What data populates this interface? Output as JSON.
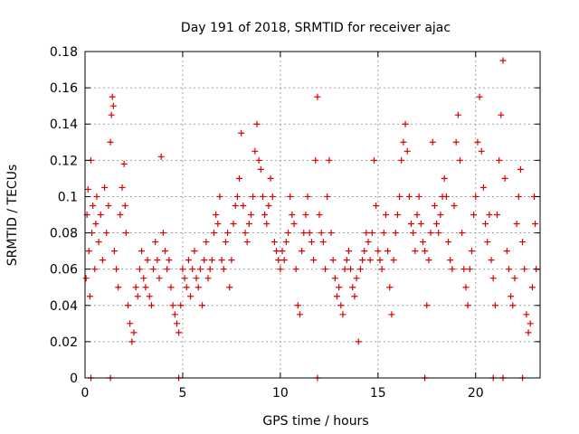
{
  "chart_data": {
    "type": "scatter",
    "title": "Day 191 of 2018, SRMTID for receiver ajac",
    "xlabel": "GPS time / hours",
    "ylabel": "SRMTID / TECUs",
    "xlim": [
      0,
      23.3
    ],
    "ylim": [
      0,
      0.18
    ],
    "xticks": [
      0,
      5,
      10,
      15,
      20
    ],
    "yticks": [
      0,
      0.02,
      0.04,
      0.06,
      0.08,
      0.1,
      0.12,
      0.14,
      0.16,
      0.18
    ],
    "grid": true,
    "marker": "+",
    "marker_color": "#dd0000",
    "series": [
      {
        "name": "",
        "points": [
          [
            0.05,
            0.055
          ],
          [
            0.1,
            0.09
          ],
          [
            0.15,
            0.104
          ],
          [
            0.2,
            0.07
          ],
          [
            0.25,
            0.045
          ],
          [
            0.3,
            0.12
          ],
          [
            0.35,
            0.08
          ],
          [
            0.4,
            0.095
          ],
          [
            0.5,
            0.06
          ],
          [
            0.55,
            0.085
          ],
          [
            0.6,
            0.1
          ],
          [
            0.7,
            0.075
          ],
          [
            0.8,
            0.09
          ],
          [
            0.9,
            0.065
          ],
          [
            1.0,
            0.105
          ],
          [
            1.1,
            0.08
          ],
          [
            1.2,
            0.095
          ],
          [
            1.3,
            0.13
          ],
          [
            1.35,
            0.145
          ],
          [
            1.4,
            0.155
          ],
          [
            1.45,
            0.15
          ],
          [
            1.5,
            0.07
          ],
          [
            1.6,
            0.06
          ],
          [
            1.7,
            0.05
          ],
          [
            1.8,
            0.09
          ],
          [
            1.9,
            0.105
          ],
          [
            2.0,
            0.118
          ],
          [
            2.05,
            0.095
          ],
          [
            2.1,
            0.08
          ],
          [
            2.2,
            0.04
          ],
          [
            2.3,
            0.03
          ],
          [
            2.4,
            0.02
          ],
          [
            2.5,
            0.025
          ],
          [
            2.6,
            0.05
          ],
          [
            2.7,
            0.045
          ],
          [
            2.8,
            0.06
          ],
          [
            2.9,
            0.07
          ],
          [
            3.0,
            0.055
          ],
          [
            3.1,
            0.05
          ],
          [
            3.2,
            0.065
          ],
          [
            3.3,
            0.045
          ],
          [
            3.4,
            0.04
          ],
          [
            3.5,
            0.06
          ],
          [
            3.6,
            0.075
          ],
          [
            3.7,
            0.065
          ],
          [
            3.8,
            0.055
          ],
          [
            3.9,
            0.122
          ],
          [
            4.0,
            0.08
          ],
          [
            4.1,
            0.07
          ],
          [
            4.2,
            0.06
          ],
          [
            4.3,
            0.065
          ],
          [
            4.4,
            0.05
          ],
          [
            4.5,
            0.04
          ],
          [
            4.6,
            0.035
          ],
          [
            4.7,
            0.03
          ],
          [
            4.8,
            0.025
          ],
          [
            4.9,
            0.04
          ],
          [
            5.0,
            0.06
          ],
          [
            5.1,
            0.055
          ],
          [
            5.2,
            0.05
          ],
          [
            5.3,
            0.065
          ],
          [
            5.4,
            0.045
          ],
          [
            5.5,
            0.06
          ],
          [
            5.6,
            0.07
          ],
          [
            5.7,
            0.055
          ],
          [
            5.8,
            0.05
          ],
          [
            5.9,
            0.06
          ],
          [
            6.0,
            0.04
          ],
          [
            6.1,
            0.065
          ],
          [
            6.2,
            0.075
          ],
          [
            6.3,
            0.055
          ],
          [
            6.4,
            0.06
          ],
          [
            6.5,
            0.065
          ],
          [
            6.6,
            0.08
          ],
          [
            6.7,
            0.09
          ],
          [
            6.8,
            0.085
          ],
          [
            6.9,
            0.1
          ],
          [
            7.0,
            0.065
          ],
          [
            7.1,
            0.06
          ],
          [
            7.2,
            0.075
          ],
          [
            7.3,
            0.08
          ],
          [
            7.4,
            0.05
          ],
          [
            7.5,
            0.065
          ],
          [
            7.6,
            0.085
          ],
          [
            7.7,
            0.095
          ],
          [
            7.8,
            0.1
          ],
          [
            7.9,
            0.11
          ],
          [
            8.0,
            0.135
          ],
          [
            8.1,
            0.095
          ],
          [
            8.2,
            0.08
          ],
          [
            8.3,
            0.075
          ],
          [
            8.4,
            0.085
          ],
          [
            8.5,
            0.09
          ],
          [
            8.6,
            0.1
          ],
          [
            8.7,
            0.125
          ],
          [
            8.8,
            0.14
          ],
          [
            8.9,
            0.12
          ],
          [
            9.0,
            0.115
          ],
          [
            9.1,
            0.1
          ],
          [
            9.2,
            0.09
          ],
          [
            9.3,
            0.085
          ],
          [
            9.4,
            0.095
          ],
          [
            9.5,
            0.11
          ],
          [
            9.6,
            0.1
          ],
          [
            9.7,
            0.075
          ],
          [
            9.8,
            0.07
          ],
          [
            9.9,
            0.065
          ],
          [
            10.0,
            0.06
          ],
          [
            10.1,
            0.07
          ],
          [
            10.2,
            0.065
          ],
          [
            10.3,
            0.075
          ],
          [
            10.4,
            0.08
          ],
          [
            10.5,
            0.1
          ],
          [
            10.6,
            0.09
          ],
          [
            10.7,
            0.085
          ],
          [
            10.8,
            0.06
          ],
          [
            10.9,
            0.04
          ],
          [
            11.0,
            0.035
          ],
          [
            11.1,
            0.07
          ],
          [
            11.2,
            0.08
          ],
          [
            11.3,
            0.09
          ],
          [
            11.4,
            0.1
          ],
          [
            11.5,
            0.08
          ],
          [
            11.6,
            0.075
          ],
          [
            11.7,
            0.065
          ],
          [
            11.8,
            0.12
          ],
          [
            11.9,
            0.155
          ],
          [
            12.0,
            0.09
          ],
          [
            12.1,
            0.08
          ],
          [
            12.2,
            0.075
          ],
          [
            12.3,
            0.06
          ],
          [
            12.4,
            0.1
          ],
          [
            12.5,
            0.12
          ],
          [
            12.6,
            0.08
          ],
          [
            12.7,
            0.065
          ],
          [
            12.8,
            0.055
          ],
          [
            12.9,
            0.045
          ],
          [
            13.0,
            0.05
          ],
          [
            13.1,
            0.04
          ],
          [
            13.2,
            0.035
          ],
          [
            13.3,
            0.06
          ],
          [
            13.4,
            0.065
          ],
          [
            13.5,
            0.07
          ],
          [
            13.6,
            0.06
          ],
          [
            13.7,
            0.05
          ],
          [
            13.8,
            0.045
          ],
          [
            13.9,
            0.055
          ],
          [
            14.0,
            0.02
          ],
          [
            14.1,
            0.06
          ],
          [
            14.2,
            0.065
          ],
          [
            14.3,
            0.07
          ],
          [
            14.4,
            0.08
          ],
          [
            14.5,
            0.075
          ],
          [
            14.6,
            0.065
          ],
          [
            14.7,
            0.08
          ],
          [
            14.8,
            0.12
          ],
          [
            14.9,
            0.095
          ],
          [
            15.0,
            0.07
          ],
          [
            15.1,
            0.065
          ],
          [
            15.2,
            0.06
          ],
          [
            15.3,
            0.08
          ],
          [
            15.4,
            0.09
          ],
          [
            15.5,
            0.07
          ],
          [
            15.6,
            0.05
          ],
          [
            15.7,
            0.035
          ],
          [
            15.8,
            0.065
          ],
          [
            15.9,
            0.08
          ],
          [
            16.0,
            0.09
          ],
          [
            16.1,
            0.1
          ],
          [
            16.2,
            0.12
          ],
          [
            16.3,
            0.13
          ],
          [
            16.4,
            0.14
          ],
          [
            16.5,
            0.125
          ],
          [
            16.6,
            0.1
          ],
          [
            16.7,
            0.085
          ],
          [
            16.8,
            0.08
          ],
          [
            16.9,
            0.07
          ],
          [
            17.0,
            0.09
          ],
          [
            17.1,
            0.1
          ],
          [
            17.2,
            0.085
          ],
          [
            17.3,
            0.075
          ],
          [
            17.4,
            0.07
          ],
          [
            17.5,
            0.04
          ],
          [
            17.6,
            0.065
          ],
          [
            17.7,
            0.08
          ],
          [
            17.8,
            0.13
          ],
          [
            17.9,
            0.095
          ],
          [
            18.0,
            0.085
          ],
          [
            18.1,
            0.08
          ],
          [
            18.2,
            0.09
          ],
          [
            18.3,
            0.1
          ],
          [
            18.4,
            0.11
          ],
          [
            18.5,
            0.1
          ],
          [
            18.6,
            0.075
          ],
          [
            18.7,
            0.065
          ],
          [
            18.8,
            0.06
          ],
          [
            18.9,
            0.095
          ],
          [
            19.0,
            0.13
          ],
          [
            19.1,
            0.145
          ],
          [
            19.2,
            0.12
          ],
          [
            19.3,
            0.08
          ],
          [
            19.4,
            0.06
          ],
          [
            19.5,
            0.05
          ],
          [
            19.6,
            0.04
          ],
          [
            19.7,
            0.06
          ],
          [
            19.8,
            0.07
          ],
          [
            19.9,
            0.09
          ],
          [
            20.0,
            0.1
          ],
          [
            20.1,
            0.13
          ],
          [
            20.2,
            0.155
          ],
          [
            20.3,
            0.125
          ],
          [
            20.4,
            0.105
          ],
          [
            20.5,
            0.085
          ],
          [
            20.6,
            0.075
          ],
          [
            20.7,
            0.09
          ],
          [
            20.8,
            0.065
          ],
          [
            20.9,
            0.055
          ],
          [
            21.0,
            0.04
          ],
          [
            21.1,
            0.09
          ],
          [
            21.2,
            0.12
          ],
          [
            21.3,
            0.145
          ],
          [
            21.4,
            0.175
          ],
          [
            21.5,
            0.11
          ],
          [
            21.6,
            0.07
          ],
          [
            21.7,
            0.06
          ],
          [
            21.8,
            0.045
          ],
          [
            21.9,
            0.04
          ],
          [
            22.0,
            0.055
          ],
          [
            22.1,
            0.085
          ],
          [
            22.2,
            0.1
          ],
          [
            22.3,
            0.115
          ],
          [
            22.4,
            0.075
          ],
          [
            22.5,
            0.06
          ],
          [
            22.6,
            0.035
          ],
          [
            22.7,
            0.025
          ],
          [
            22.8,
            0.03
          ],
          [
            22.9,
            0.05
          ],
          [
            23.0,
            0.1
          ],
          [
            23.05,
            0.085
          ],
          [
            23.1,
            0.06
          ]
        ]
      },
      {
        "name": "",
        "points": [
          [
            0.3,
            0.0
          ],
          [
            1.3,
            0.0
          ],
          [
            4.8,
            0.0
          ],
          [
            11.9,
            0.0
          ],
          [
            17.4,
            0.0
          ],
          [
            20.9,
            0.0
          ],
          [
            21.4,
            0.0
          ],
          [
            22.4,
            0.0
          ]
        ]
      }
    ]
  }
}
